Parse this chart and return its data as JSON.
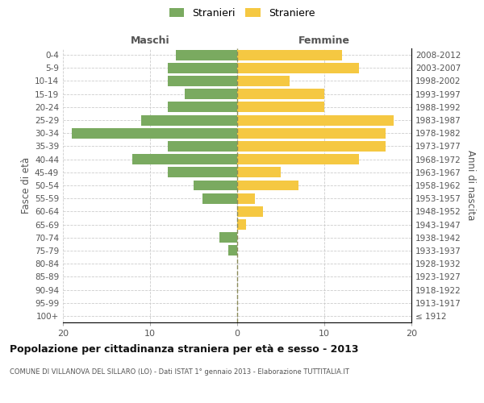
{
  "age_groups": [
    "100+",
    "95-99",
    "90-94",
    "85-89",
    "80-84",
    "75-79",
    "70-74",
    "65-69",
    "60-64",
    "55-59",
    "50-54",
    "45-49",
    "40-44",
    "35-39",
    "30-34",
    "25-29",
    "20-24",
    "15-19",
    "10-14",
    "5-9",
    "0-4"
  ],
  "birth_years": [
    "≤ 1912",
    "1913-1917",
    "1918-1922",
    "1923-1927",
    "1928-1932",
    "1933-1937",
    "1938-1942",
    "1943-1947",
    "1948-1952",
    "1953-1957",
    "1958-1962",
    "1963-1967",
    "1968-1972",
    "1973-1977",
    "1978-1982",
    "1983-1987",
    "1988-1992",
    "1993-1997",
    "1998-2002",
    "2003-2007",
    "2008-2012"
  ],
  "maschi": [
    0,
    0,
    0,
    0,
    0,
    1,
    2,
    0,
    0,
    4,
    5,
    8,
    12,
    8,
    19,
    11,
    8,
    6,
    8,
    8,
    7
  ],
  "femmine": [
    0,
    0,
    0,
    0,
    0,
    0,
    0,
    1,
    3,
    2,
    7,
    5,
    14,
    17,
    17,
    18,
    10,
    10,
    6,
    14,
    12
  ],
  "color_maschi": "#7aaa60",
  "color_femmine": "#f5c842",
  "color_zero_line": "#8b8b5a",
  "title": "Popolazione per cittadinanza straniera per età e sesso - 2013",
  "subtitle": "COMUNE DI VILLANOVA DEL SILLARO (LO) - Dati ISTAT 1° gennaio 2013 - Elaborazione TUTTITALIA.IT",
  "ylabel_left": "Fasce di età",
  "ylabel_right": "Anni di nascita",
  "label_maschi": "Maschi",
  "label_femmine": "Femmine",
  "legend_maschi": "Stranieri",
  "legend_femmine": "Straniere",
  "xlim": 20,
  "background_color": "#ffffff",
  "grid_color": "#cccccc"
}
